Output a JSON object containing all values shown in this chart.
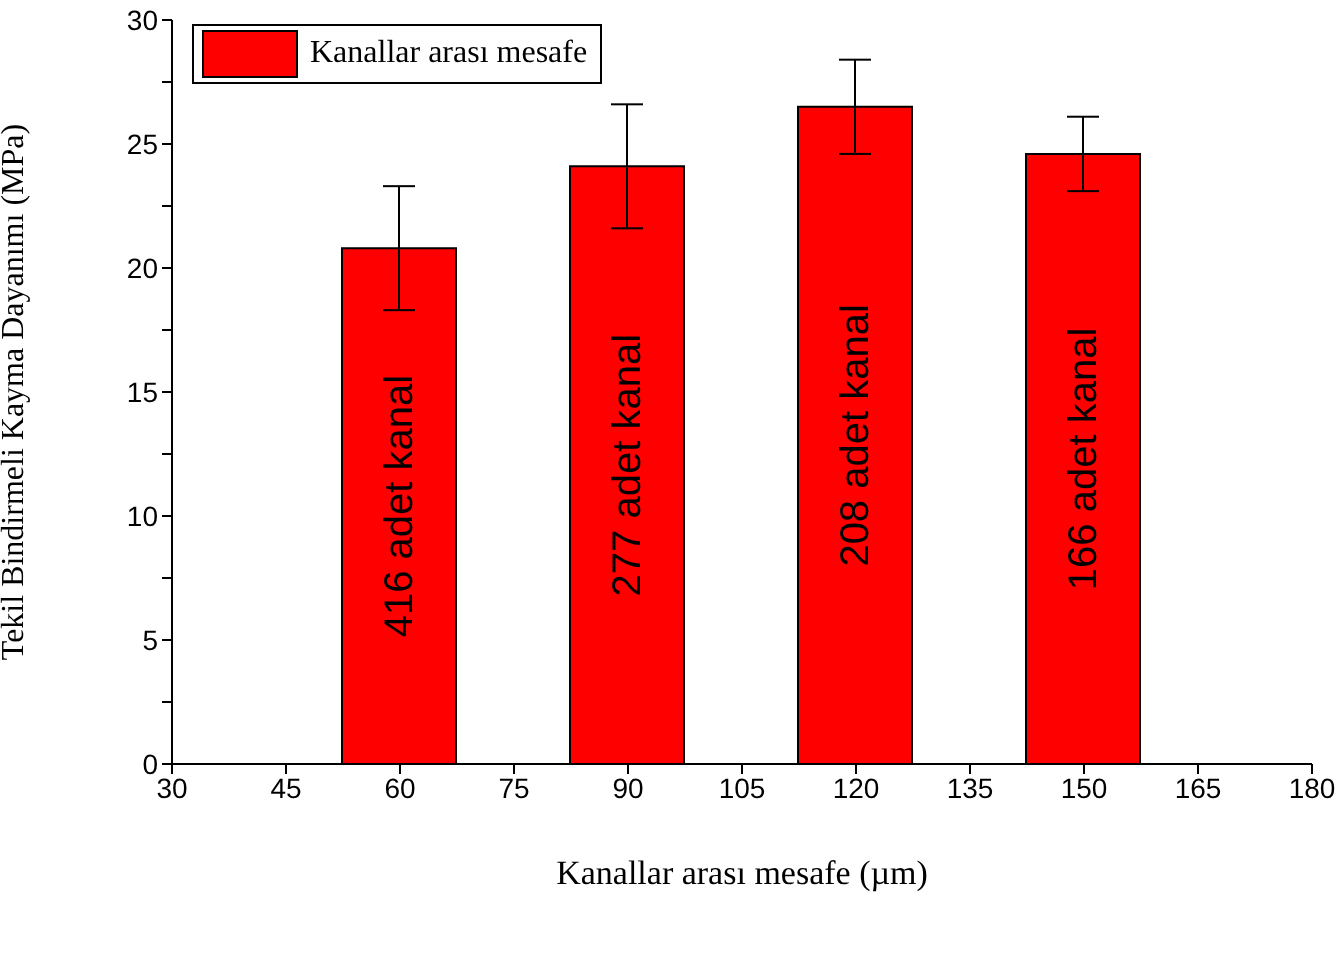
{
  "chart_data": {
    "type": "bar",
    "xlabel": "Kanallar arası mesafe (µm)",
    "ylabel": "Tekil Bindirmeli Kayma Dayanımı (MPa)",
    "x": [
      60,
      90,
      120,
      150
    ],
    "series": [
      {
        "name": "Kanallar arası mesafe",
        "color": "#ff0000",
        "values": [
          20.8,
          24.1,
          26.5,
          24.6
        ],
        "errors": [
          2.5,
          2.5,
          1.9,
          1.5
        ]
      }
    ],
    "xlim": [
      30,
      180
    ],
    "xticks": [
      30,
      45,
      60,
      75,
      90,
      105,
      120,
      135,
      150,
      165,
      180
    ],
    "ylim": [
      0,
      30
    ],
    "yticks": [
      0,
      {
        "value": 2.5,
        "label": null
      },
      5,
      {
        "value": 7.5,
        "label": null
      },
      10,
      {
        "value": 12.5,
        "label": null
      },
      15,
      {
        "value": 17.5,
        "label": null
      },
      20,
      {
        "value": 22.5,
        "label": null
      },
      25,
      {
        "value": 27.5,
        "label": null
      },
      30
    ],
    "annotations": [
      "416 adet kanal",
      "277 adet kanal",
      "208 adet kanal",
      "166 adet kanal"
    ],
    "legend": "top left",
    "grid": false
  }
}
